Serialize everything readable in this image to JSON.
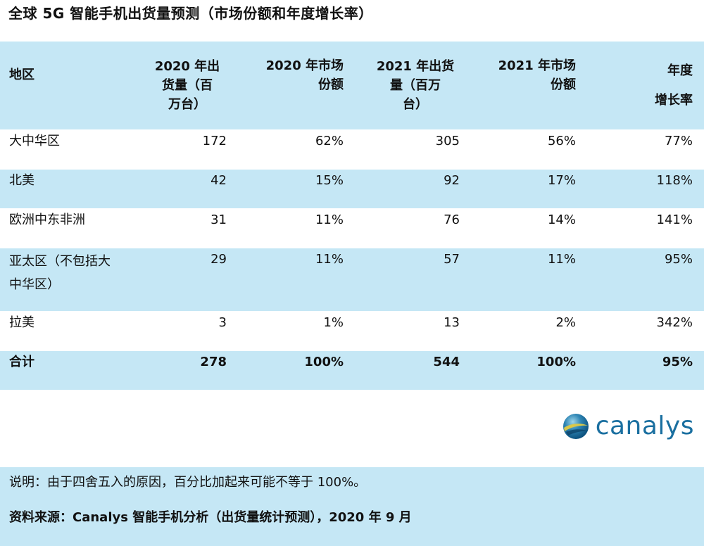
{
  "title": "全球 5G 智能手机出货量预测（市场份额和年度增长率）",
  "table": {
    "headers": [
      "地区",
      "2020 年出\n货量（百\n万台）",
      "2020 年市场\n份额",
      "2021 年出货\n量（百万\n台）",
      "2021 年市场\n份额",
      "年度\n增长率"
    ],
    "rows": [
      {
        "region": "大中华区",
        "ship2020": "172",
        "share2020": "62%",
        "ship2021": "305",
        "share2021": "56%",
        "growth": "77%"
      },
      {
        "region": "北美",
        "ship2020": "42",
        "share2020": "15%",
        "ship2021": "92",
        "share2021": "17%",
        "growth": "118%"
      },
      {
        "region": "欧洲中东非洲",
        "ship2020": "31",
        "share2020": "11%",
        "ship2021": "76",
        "share2021": "14%",
        "growth": "141%"
      },
      {
        "region": "亚太区（不包括大\n中华区）",
        "ship2020": "29",
        "share2020": "11%",
        "ship2021": "57",
        "share2021": "11%",
        "growth": "95%"
      },
      {
        "region": "拉美",
        "ship2020": "3",
        "share2020": "1%",
        "ship2021": "13",
        "share2021": "2%",
        "growth": "342%"
      }
    ],
    "total": {
      "region": "合计",
      "ship2020": "278",
      "share2020": "100%",
      "ship2021": "544",
      "share2021": "100%",
      "growth": "95%"
    }
  },
  "logo": {
    "text": "canalys",
    "icon": "canalys-globe-icon",
    "colors": {
      "text": "#1a6fa0",
      "globe_dark": "#0b4f7c",
      "globe_light": "#7cc3e0",
      "swoosh": "#d9c84a"
    }
  },
  "footer": {
    "note": "说明：由于四舍五入的原因，百分比加起来可能不等于 100%。",
    "source": "资料来源：Canalys 智能手机分析（出货量统计预测），2020 年 9 月"
  },
  "colors": {
    "row_blue": "#c5e7f5",
    "row_white": "#ffffff"
  }
}
